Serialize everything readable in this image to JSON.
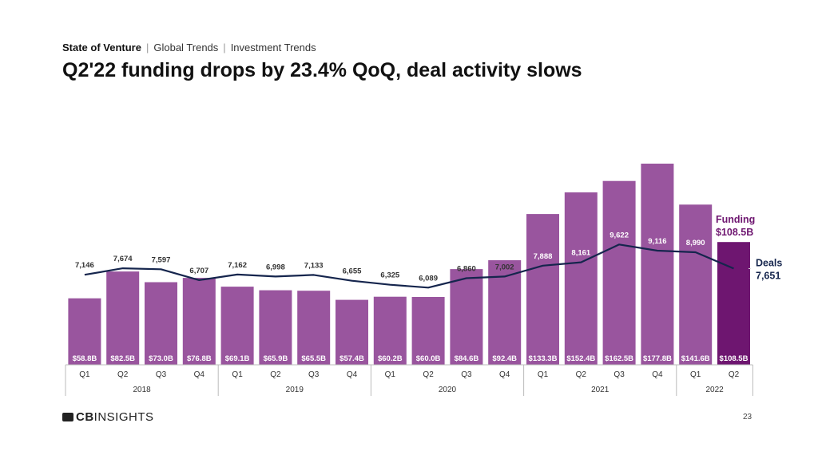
{
  "header": {
    "breadcrumb": [
      "State of Venture",
      "Global Trends",
      "Investment Trends"
    ],
    "title": "Q2'22 funding drops by 23.4% QoQ, deal activity slows"
  },
  "footer": {
    "logo_bold": "CB",
    "logo_light": "INSIGHTS",
    "page_number": "23"
  },
  "colors": {
    "bar": "#99559e",
    "bar_highlight": "#6e1670",
    "line": "#15254d",
    "funding_label": "#6e1670"
  },
  "chart_data": {
    "type": "bar",
    "quarters": [
      "Q1",
      "Q2",
      "Q3",
      "Q4",
      "Q1",
      "Q2",
      "Q3",
      "Q4",
      "Q1",
      "Q2",
      "Q3",
      "Q4",
      "Q1",
      "Q2",
      "Q3",
      "Q4",
      "Q1",
      "Q2"
    ],
    "years": [
      {
        "label": "2018",
        "count": 4
      },
      {
        "label": "2019",
        "count": 4
      },
      {
        "label": "2020",
        "count": 4
      },
      {
        "label": "2021",
        "count": 4
      },
      {
        "label": "2022",
        "count": 2
      }
    ],
    "series": [
      {
        "name": "Funding",
        "unit": "$B",
        "values": [
          58.8,
          82.5,
          73.0,
          76.8,
          69.1,
          65.9,
          65.5,
          57.4,
          60.2,
          60.0,
          84.6,
          92.4,
          133.3,
          152.4,
          162.5,
          177.8,
          141.6,
          108.5
        ],
        "labels": [
          "$58.8B",
          "$82.5B",
          "$73.0B",
          "$76.8B",
          "$69.1B",
          "$65.9B",
          "$65.5B",
          "$57.4B",
          "$60.2B",
          "$60.0B",
          "$84.6B",
          "$92.4B",
          "$133.3B",
          "$152.4B",
          "$162.5B",
          "$177.8B",
          "$141.6B",
          "$108.5B"
        ]
      },
      {
        "name": "Deals",
        "values": [
          7146,
          7674,
          7597,
          6707,
          7162,
          6998,
          7133,
          6655,
          6325,
          6089,
          6860,
          7002,
          7888,
          8161,
          9622,
          9116,
          8990,
          7651
        ],
        "labels": [
          "7,146",
          "7,674",
          "7,597",
          "6,707",
          "7,162",
          "6,998",
          "7,133",
          "6,655",
          "6,325",
          "6,089",
          "6,860",
          "7,002",
          "7,888",
          "8,161",
          "9,622",
          "9,116",
          "8,990",
          "7,651"
        ]
      }
    ],
    "callouts": {
      "funding_name": "Funding",
      "funding_value": "$108.5B",
      "deals_name": "Deals",
      "deals_value": "7,651"
    }
  }
}
